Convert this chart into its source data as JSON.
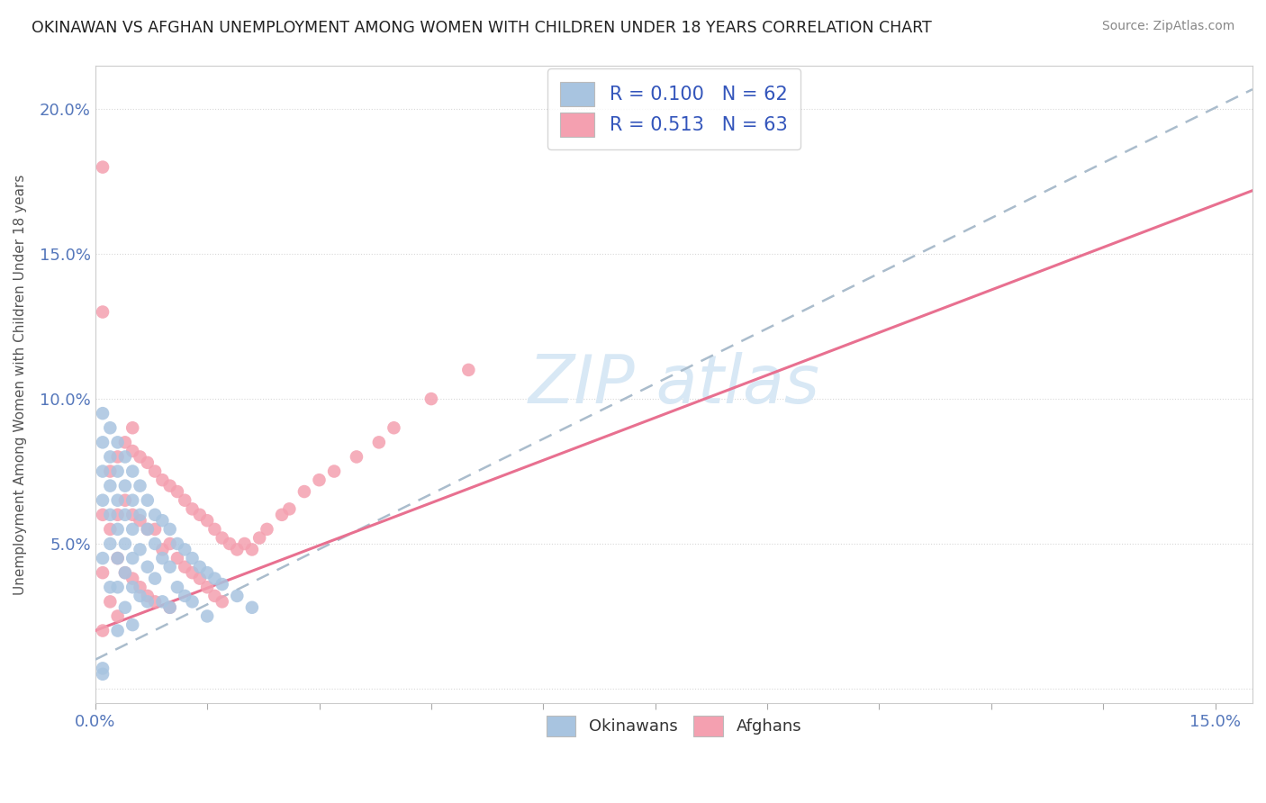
{
  "title": "OKINAWAN VS AFGHAN UNEMPLOYMENT AMONG WOMEN WITH CHILDREN UNDER 18 YEARS CORRELATION CHART",
  "source": "Source: ZipAtlas.com",
  "ylabel": "Unemployment Among Women with Children Under 18 years",
  "xlim": [
    0.0,
    0.155
  ],
  "ylim": [
    -0.005,
    0.215
  ],
  "okinawan_color": "#a8c4e0",
  "afghan_color": "#f4a0b0",
  "okinawan_R": 0.1,
  "okinawan_N": 62,
  "afghan_R": 0.513,
  "afghan_N": 63,
  "trend_dashed_color": "#aabccc",
  "trend_solid_color": "#e87090",
  "background_color": "#ffffff",
  "okinawan_x": [
    0.001,
    0.001,
    0.001,
    0.001,
    0.001,
    0.002,
    0.002,
    0.002,
    0.002,
    0.002,
    0.002,
    0.003,
    0.003,
    0.003,
    0.003,
    0.003,
    0.003,
    0.003,
    0.004,
    0.004,
    0.004,
    0.004,
    0.004,
    0.004,
    0.005,
    0.005,
    0.005,
    0.005,
    0.005,
    0.005,
    0.006,
    0.006,
    0.006,
    0.006,
    0.007,
    0.007,
    0.007,
    0.007,
    0.008,
    0.008,
    0.008,
    0.009,
    0.009,
    0.009,
    0.01,
    0.01,
    0.01,
    0.011,
    0.011,
    0.012,
    0.012,
    0.013,
    0.013,
    0.014,
    0.015,
    0.015,
    0.016,
    0.017,
    0.019,
    0.021,
    0.001,
    0.001
  ],
  "okinawan_y": [
    0.095,
    0.085,
    0.075,
    0.065,
    0.045,
    0.09,
    0.08,
    0.07,
    0.06,
    0.05,
    0.035,
    0.085,
    0.075,
    0.065,
    0.055,
    0.045,
    0.035,
    0.02,
    0.08,
    0.07,
    0.06,
    0.05,
    0.04,
    0.028,
    0.075,
    0.065,
    0.055,
    0.045,
    0.035,
    0.022,
    0.07,
    0.06,
    0.048,
    0.032,
    0.065,
    0.055,
    0.042,
    0.03,
    0.06,
    0.05,
    0.038,
    0.058,
    0.045,
    0.03,
    0.055,
    0.042,
    0.028,
    0.05,
    0.035,
    0.048,
    0.032,
    0.045,
    0.03,
    0.042,
    0.04,
    0.025,
    0.038,
    0.036,
    0.032,
    0.028,
    0.005,
    0.007
  ],
  "afghan_x": [
    0.001,
    0.001,
    0.001,
    0.002,
    0.002,
    0.002,
    0.003,
    0.003,
    0.003,
    0.003,
    0.004,
    0.004,
    0.004,
    0.005,
    0.005,
    0.005,
    0.006,
    0.006,
    0.006,
    0.007,
    0.007,
    0.007,
    0.008,
    0.008,
    0.008,
    0.009,
    0.009,
    0.01,
    0.01,
    0.01,
    0.011,
    0.011,
    0.012,
    0.012,
    0.013,
    0.013,
    0.014,
    0.014,
    0.015,
    0.015,
    0.016,
    0.016,
    0.017,
    0.017,
    0.018,
    0.019,
    0.02,
    0.021,
    0.022,
    0.023,
    0.025,
    0.026,
    0.028,
    0.03,
    0.032,
    0.035,
    0.038,
    0.04,
    0.045,
    0.05,
    0.001,
    0.001,
    0.005
  ],
  "afghan_y": [
    0.06,
    0.04,
    0.02,
    0.075,
    0.055,
    0.03,
    0.08,
    0.06,
    0.045,
    0.025,
    0.085,
    0.065,
    0.04,
    0.082,
    0.06,
    0.038,
    0.08,
    0.058,
    0.035,
    0.078,
    0.055,
    0.032,
    0.075,
    0.055,
    0.03,
    0.072,
    0.048,
    0.07,
    0.05,
    0.028,
    0.068,
    0.045,
    0.065,
    0.042,
    0.062,
    0.04,
    0.06,
    0.038,
    0.058,
    0.035,
    0.055,
    0.032,
    0.052,
    0.03,
    0.05,
    0.048,
    0.05,
    0.048,
    0.052,
    0.055,
    0.06,
    0.062,
    0.068,
    0.072,
    0.075,
    0.08,
    0.085,
    0.09,
    0.1,
    0.11,
    0.18,
    0.13,
    0.09
  ]
}
